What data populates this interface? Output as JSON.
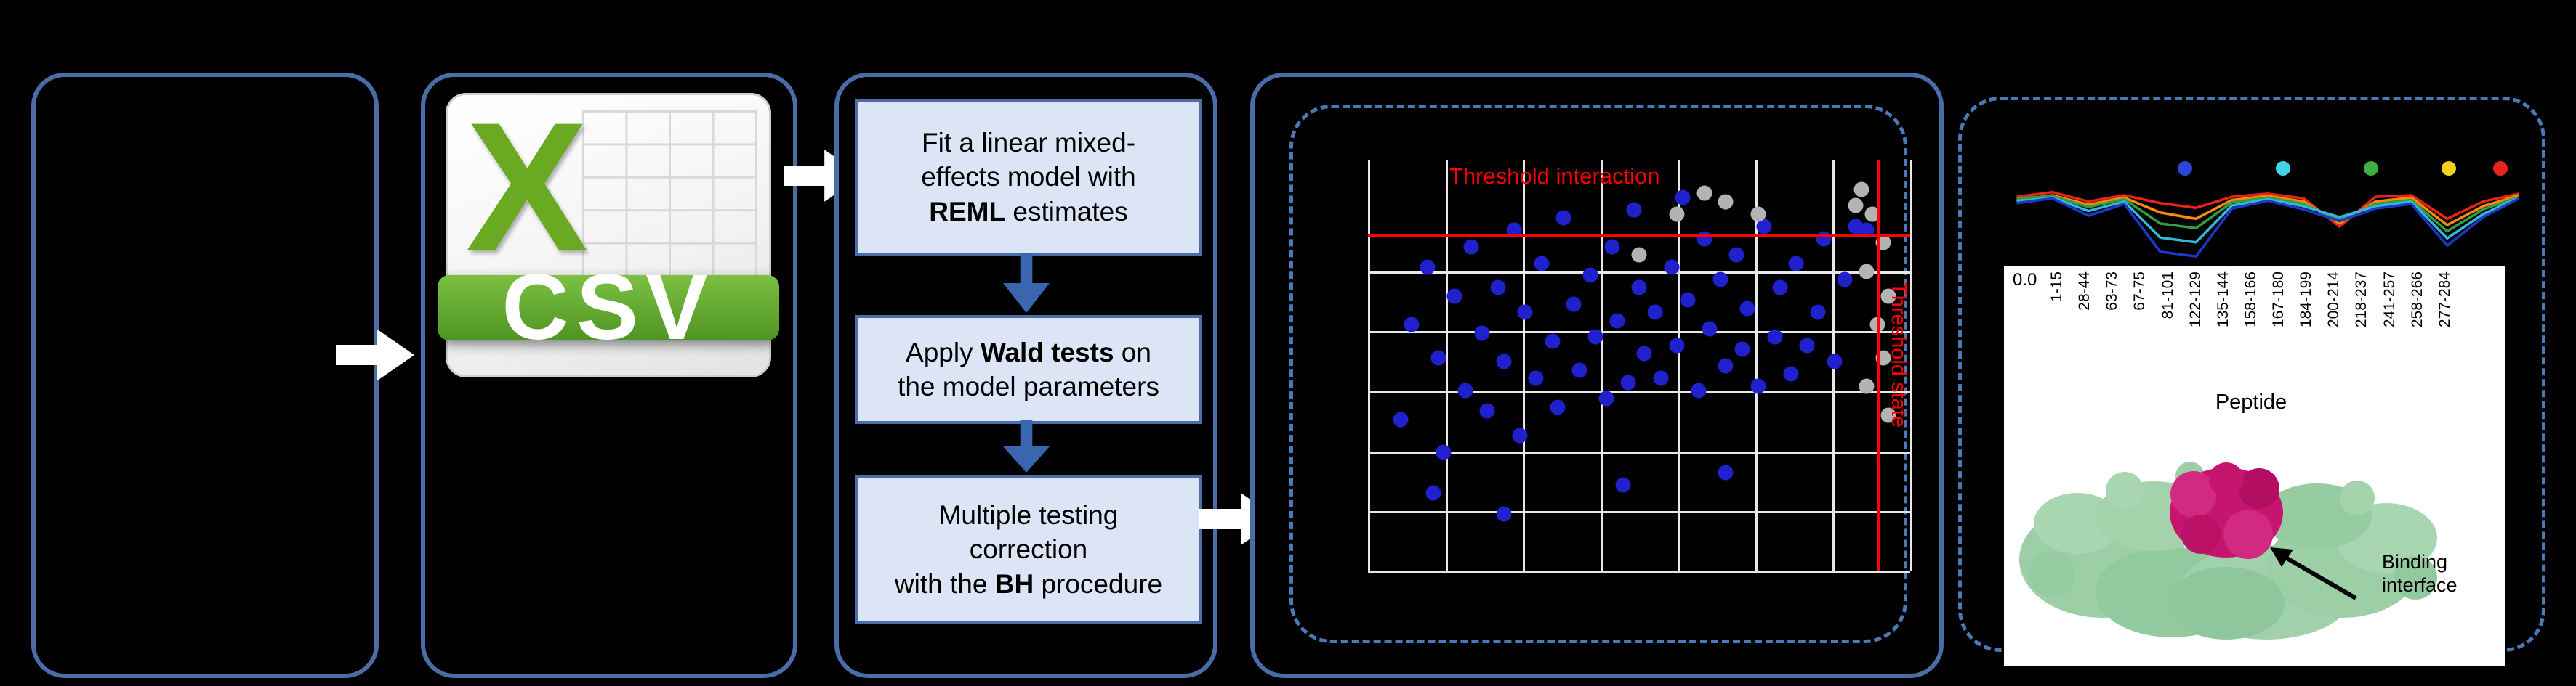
{
  "figure": {
    "background": "#000000",
    "panel_border_color": "#4a6da7",
    "dashed_border_color": "#4a7ab5",
    "arrow_color": "#ffffff"
  },
  "csv": {
    "x_letter": "X",
    "label": "CSV"
  },
  "flow": {
    "step_fill": "#dbe5f5",
    "step_border": "#4a6da7",
    "down_arrow_color": "#3a66b0",
    "steps": [
      {
        "segments": [
          {
            "t": "Fit a linear mixed-"
          },
          {
            "br": true
          },
          {
            "t": "effects model with"
          },
          {
            "br": true
          },
          {
            "t": "REML",
            "b": true
          },
          {
            "t": " estimates"
          }
        ]
      },
      {
        "segments": [
          {
            "t": "Apply "
          },
          {
            "t": "Wald tests",
            "b": true
          },
          {
            "t": " on"
          },
          {
            "br": true
          },
          {
            "t": "the model parameters"
          }
        ]
      },
      {
        "segments": [
          {
            "t": "Multiple testing"
          },
          {
            "br": true
          },
          {
            "t": "correction"
          },
          {
            "br": true
          },
          {
            "t": "with the "
          },
          {
            "t": "BH",
            "b": true
          },
          {
            "t": " procedure"
          }
        ]
      }
    ]
  },
  "scatter": {
    "title": "Threshold interaction",
    "vertical_label": "Threshold state",
    "threshold_color": "#ff0000",
    "grid_color": "#e8e8e8",
    "point_color": "#2020cc",
    "secondary_point_color": "#b3b3b3",
    "h_threshold_pct": 18,
    "v_threshold_pct": 94,
    "grid_v_pct": [
      0,
      14.3,
      28.6,
      42.9,
      57.1,
      71.4,
      85.7,
      100
    ],
    "grid_h_pct": [
      27,
      41.6,
      56.2,
      70.8,
      85.4,
      100
    ],
    "points": [
      [
        6,
        63
      ],
      [
        8,
        40
      ],
      [
        11,
        26
      ],
      [
        13,
        48
      ],
      [
        14,
        71
      ],
      [
        16,
        33
      ],
      [
        18,
        56
      ],
      [
        19,
        21
      ],
      [
        21,
        42
      ],
      [
        22,
        61
      ],
      [
        24,
        31
      ],
      [
        25,
        49
      ],
      [
        27,
        17
      ],
      [
        28,
        67
      ],
      [
        29,
        37
      ],
      [
        31,
        53
      ],
      [
        32,
        25
      ],
      [
        34,
        44
      ],
      [
        35,
        60
      ],
      [
        36,
        14
      ],
      [
        38,
        35
      ],
      [
        39,
        51
      ],
      [
        41,
        28
      ],
      [
        42,
        43
      ],
      [
        44,
        58
      ],
      [
        45,
        21
      ],
      [
        46,
        39
      ],
      [
        48,
        54
      ],
      [
        49,
        12
      ],
      [
        50,
        31
      ],
      [
        51,
        47
      ],
      [
        53,
        37
      ],
      [
        54,
        53
      ],
      [
        56,
        26
      ],
      [
        57,
        45
      ],
      [
        58,
        9
      ],
      [
        59,
        34
      ],
      [
        61,
        56
      ],
      [
        62,
        19
      ],
      [
        63,
        41
      ],
      [
        65,
        29
      ],
      [
        66,
        50
      ],
      [
        68,
        23
      ],
      [
        69,
        46
      ],
      [
        70,
        36
      ],
      [
        72,
        55
      ],
      [
        73,
        16
      ],
      [
        75,
        43
      ],
      [
        76,
        31
      ],
      [
        78,
        52
      ],
      [
        79,
        25
      ],
      [
        81,
        45
      ],
      [
        83,
        37
      ],
      [
        84,
        19
      ],
      [
        86,
        49
      ],
      [
        88,
        29
      ],
      [
        90,
        16
      ],
      [
        92,
        17
      ],
      [
        12,
        81
      ],
      [
        25,
        86
      ],
      [
        47,
        79
      ],
      [
        66,
        76
      ]
    ],
    "secondary_points": [
      [
        91,
        7
      ],
      [
        93,
        13
      ],
      [
        95,
        20
      ],
      [
        92,
        27
      ],
      [
        96,
        33
      ],
      [
        94,
        40
      ],
      [
        95,
        48
      ],
      [
        92,
        55
      ],
      [
        96,
        62
      ],
      [
        90,
        11
      ],
      [
        57,
        13
      ],
      [
        66,
        10
      ],
      [
        72,
        13
      ],
      [
        50,
        23
      ],
      [
        62,
        8
      ]
    ]
  },
  "uptake": {
    "y_tick": "0.0",
    "x_axis_title": "Peptide",
    "x_labels": [
      "1-15",
      "28-44",
      "63-73",
      "67-75",
      "81-101",
      "122-129",
      "135-144",
      "158-166",
      "167-180",
      "184-199",
      "200-214",
      "218-237",
      "241-257",
      "258-266",
      "277-284"
    ],
    "legend": [
      {
        "color": "#2d46d8",
        "left_pct": 34
      },
      {
        "color": "#3fd4e6",
        "left_pct": 53
      },
      {
        "color": "#3cb043",
        "left_pct": 70
      },
      {
        "color": "#f3d11c",
        "left_pct": 85
      },
      {
        "color": "#e8231a",
        "left_pct": 95
      }
    ],
    "series": [
      {
        "color": "#e8231a",
        "values": [
          0.86,
          0.92,
          0.8,
          0.88,
          0.78,
          0.72,
          0.86,
          0.9,
          0.84,
          0.48,
          0.86,
          0.88,
          0.58,
          0.8,
          0.9
        ]
      },
      {
        "color": "#ff8c00",
        "values": [
          0.82,
          0.88,
          0.76,
          0.85,
          0.66,
          0.58,
          0.82,
          0.87,
          0.8,
          0.52,
          0.8,
          0.85,
          0.5,
          0.74,
          0.88
        ]
      },
      {
        "color": "#2f9e44",
        "values": [
          0.84,
          0.87,
          0.73,
          0.83,
          0.52,
          0.46,
          0.79,
          0.85,
          0.77,
          0.56,
          0.77,
          0.82,
          0.42,
          0.7,
          0.86
        ]
      },
      {
        "color": "#31b8d8",
        "values": [
          0.8,
          0.85,
          0.68,
          0.8,
          0.34,
          0.28,
          0.75,
          0.83,
          0.74,
          0.6,
          0.74,
          0.8,
          0.33,
          0.64,
          0.85
        ]
      },
      {
        "color": "#2036c9",
        "values": [
          0.78,
          0.84,
          0.62,
          0.77,
          0.16,
          0.1,
          0.71,
          0.81,
          0.7,
          0.55,
          0.71,
          0.77,
          0.24,
          0.6,
          0.84
        ]
      }
    ]
  },
  "protein": {
    "caption": "Binding interface",
    "surface_color": "#a3d2ab",
    "interface_color": "#c6156f"
  }
}
